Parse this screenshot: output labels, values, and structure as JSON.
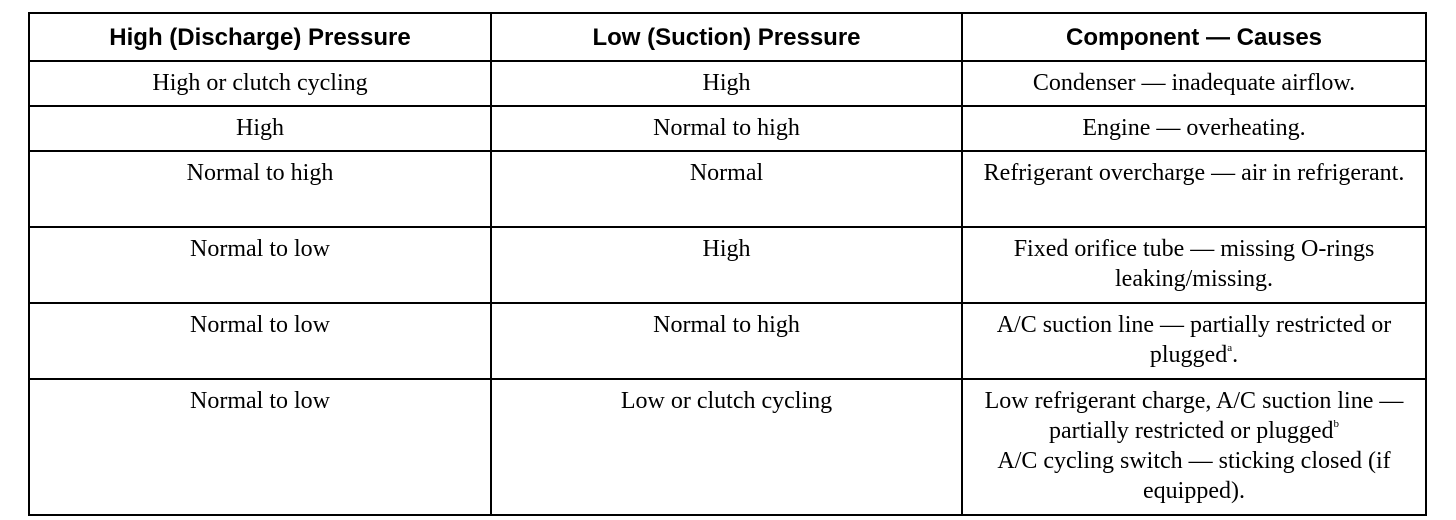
{
  "table": {
    "headers": [
      "High (Discharge) Pressure",
      "Low (Suction) Pressure",
      "Component — Causes"
    ],
    "rows": [
      {
        "high": "High or clutch cycling",
        "low": "High",
        "cause": "Condenser — inadequate airflow."
      },
      {
        "high": "High",
        "low": "Normal to high",
        "cause": "Engine — overheating."
      },
      {
        "high": "Normal to high",
        "low": "Normal",
        "cause": "Refrigerant overcharge — air in refrigerant."
      },
      {
        "high": "Normal to low",
        "low": "High",
        "cause": "Fixed orifice tube — missing O-rings leaking/missing."
      },
      {
        "high": "Normal to low",
        "low": "Normal to high",
        "cause": "A/C suction line — partially restricted or plugged",
        "cause_footnote": "a",
        "cause_after": "."
      },
      {
        "high": "Normal to low",
        "low": "Low or clutch cycling",
        "cause": "Low refrigerant charge, A/C suction line — partially restricted or plugged",
        "cause_footnote": "b",
        "cause_line2": "A/C  cycling switch — sticking closed (if equipped)."
      }
    ]
  }
}
